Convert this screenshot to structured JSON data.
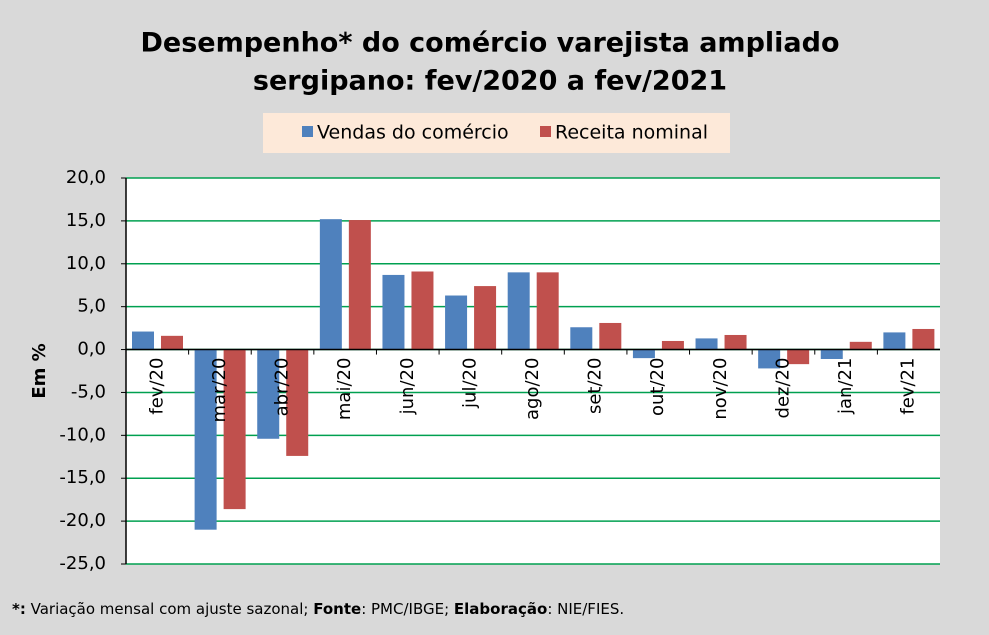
{
  "chart_data": {
    "type": "bar",
    "title": [
      "Desempenho* do comércio varejista ampliado",
      "sergipano: fev/2020 a fev/2021"
    ],
    "y_label": "Em %",
    "categories": [
      "fev/20",
      "mar/20",
      "abr/20",
      "mai/20",
      "jun/20",
      "jul/20",
      "ago/20",
      "set/20",
      "out/20",
      "nov/20",
      "dez/20",
      "jan/21",
      "fev/21"
    ],
    "series": [
      {
        "name": "Vendas do comércio",
        "color": "#4f81bd",
        "values": [
          2.1,
          -21.0,
          -10.4,
          15.2,
          8.7,
          6.3,
          9.0,
          2.6,
          -1.0,
          1.3,
          -2.2,
          -1.1,
          2.0
        ]
      },
      {
        "name": "Receita nominal",
        "color": "#c0504d",
        "values": [
          1.6,
          -18.6,
          -12.4,
          15.1,
          9.1,
          7.4,
          9.0,
          3.1,
          1.0,
          1.7,
          -1.7,
          0.9,
          2.4
        ]
      }
    ],
    "ylim": [
      -25,
      20
    ],
    "yticks": [
      {
        "value": -25,
        "label": "-25,0"
      },
      {
        "value": -20,
        "label": "-20,0"
      },
      {
        "value": -15,
        "label": "-15,0"
      },
      {
        "value": -10,
        "label": "-10,0"
      },
      {
        "value": -5,
        "label": "-5,0"
      },
      {
        "value": 0,
        "label": "0,0"
      },
      {
        "value": 5,
        "label": "5,0"
      },
      {
        "value": 10,
        "label": "10,0"
      },
      {
        "value": 15,
        "label": "15,0"
      },
      {
        "value": 20,
        "label": "20,0"
      }
    ],
    "grid": true,
    "grid_color": "#00a050",
    "legend": "top",
    "footnote": [
      {
        "text": "*:",
        "bold": true
      },
      {
        "text": " Variação mensal com ajuste sazonal; ",
        "bold": false
      },
      {
        "text": "Fonte",
        "bold": true
      },
      {
        "text": ": PMC/IBGE; ",
        "bold": false
      },
      {
        "text": "Elaboração",
        "bold": true
      },
      {
        "text": ": NIE/FIES.",
        "bold": false
      }
    ]
  }
}
